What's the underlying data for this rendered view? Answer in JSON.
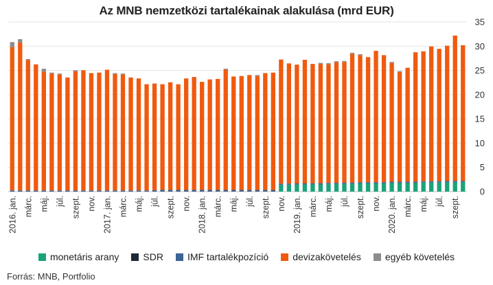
{
  "chart_data": {
    "type": "bar",
    "stacked": true,
    "title": "Az MNB nemzetközi tartalékainak alakulása (mrd EUR)",
    "source": "Forrás: MNB, Portfolio",
    "ylim": [
      0,
      35
    ],
    "yticks": [
      0,
      5,
      10,
      15,
      20,
      25,
      30,
      35
    ],
    "yaxis_position": "right",
    "grid": true,
    "legend_position": "bottom",
    "x_tick_labels": [
      {
        "index": 0,
        "label": "2016. jan."
      },
      {
        "index": 2,
        "label": "márc."
      },
      {
        "index": 4,
        "label": "máj."
      },
      {
        "index": 6,
        "label": "júl."
      },
      {
        "index": 8,
        "label": "szept."
      },
      {
        "index": 10,
        "label": "nov."
      },
      {
        "index": 12,
        "label": "2017. jan."
      },
      {
        "index": 14,
        "label": "márc."
      },
      {
        "index": 16,
        "label": "máj."
      },
      {
        "index": 18,
        "label": "júl."
      },
      {
        "index": 20,
        "label": "szept."
      },
      {
        "index": 22,
        "label": "nov."
      },
      {
        "index": 24,
        "label": "2018. jan."
      },
      {
        "index": 26,
        "label": "márc."
      },
      {
        "index": 28,
        "label": "máj."
      },
      {
        "index": 30,
        "label": "júl."
      },
      {
        "index": 32,
        "label": "szept."
      },
      {
        "index": 34,
        "label": "nov."
      },
      {
        "index": 36,
        "label": "2019. jan."
      },
      {
        "index": 38,
        "label": "márc."
      },
      {
        "index": 40,
        "label": "máj."
      },
      {
        "index": 42,
        "label": "júl."
      },
      {
        "index": 44,
        "label": "szept."
      },
      {
        "index": 46,
        "label": "nov."
      },
      {
        "index": 48,
        "label": "2020. jan."
      },
      {
        "index": 50,
        "label": "márc."
      },
      {
        "index": 52,
        "label": "máj."
      },
      {
        "index": 54,
        "label": "júl."
      },
      {
        "index": 56,
        "label": "szept."
      }
    ],
    "series": [
      {
        "name": "monetáris arany",
        "color": "#1aa37a",
        "values": [
          0,
          0,
          0,
          0,
          0,
          0,
          0,
          0,
          0,
          0,
          0,
          0,
          0,
          0,
          0,
          0,
          0,
          0,
          0,
          0,
          0,
          0,
          0,
          0,
          0,
          0,
          0,
          0,
          0,
          0,
          0,
          0,
          0,
          0,
          1.4,
          1.4,
          1.45,
          1.45,
          1.5,
          1.5,
          1.55,
          1.55,
          1.6,
          1.6,
          1.7,
          1.7,
          1.7,
          1.7,
          1.8,
          1.8,
          1.8,
          1.8,
          1.9,
          1.9,
          1.9,
          1.95,
          1.95,
          1.95
        ]
      },
      {
        "name": "SDR",
        "color": "#1c2a36",
        "values": [
          0.05,
          0.05,
          0.05,
          0.05,
          0.05,
          0.05,
          0.05,
          0.05,
          0.05,
          0.05,
          0.05,
          0.05,
          0.05,
          0.05,
          0.05,
          0.05,
          0.05,
          0.05,
          0.05,
          0.05,
          0.05,
          0.05,
          0.05,
          0.05,
          0.05,
          0.05,
          0.05,
          0.05,
          0.05,
          0.05,
          0.05,
          0.05,
          0.05,
          0.05,
          0.05,
          0.05,
          0.05,
          0.05,
          0.05,
          0.05,
          0.05,
          0.05,
          0.05,
          0.05,
          0.05,
          0.05,
          0.05,
          0.05,
          0.05,
          0.05,
          0.05,
          0.05,
          0.05,
          0.05,
          0.05,
          0.05,
          0.05,
          0.05
        ]
      },
      {
        "name": "IMF tartalékpozíció",
        "color": "#3a6596",
        "values": [
          0.2,
          0.2,
          0.2,
          0.2,
          0.2,
          0.2,
          0.2,
          0.2,
          0.2,
          0.2,
          0.2,
          0.2,
          0.2,
          0.2,
          0.2,
          0.2,
          0.2,
          0.2,
          0.25,
          0.3,
          0.3,
          0.3,
          0.3,
          0.3,
          0.3,
          0.3,
          0.3,
          0.3,
          0.3,
          0.3,
          0.3,
          0.3,
          0.3,
          0.3,
          0.2,
          0.2,
          0.2,
          0.2,
          0.2,
          0.2,
          0.2,
          0.2,
          0.2,
          0.2,
          0.2,
          0.2,
          0.2,
          0.2,
          0.2,
          0.2,
          0.2,
          0.2,
          0.2,
          0.2,
          0.2,
          0.2,
          0.2,
          0.2
        ]
      },
      {
        "name": "devizakövetelés",
        "color": "#f05a0f",
        "values": [
          29.6,
          30.5,
          26.9,
          26.0,
          24.5,
          24.1,
          23.9,
          23.3,
          24.6,
          24.8,
          24.2,
          24.3,
          24.9,
          24.0,
          23.9,
          23.3,
          23.1,
          21.9,
          22.0,
          21.8,
          22.2,
          21.8,
          23.0,
          23.3,
          22.3,
          22.8,
          22.9,
          24.8,
          23.4,
          23.5,
          23.7,
          23.5,
          24.1,
          24.2,
          25.6,
          24.8,
          24.5,
          25.5,
          24.6,
          24.6,
          24.5,
          24.9,
          24.9,
          26.6,
          26.2,
          25.8,
          27.1,
          26.2,
          24.5,
          22.6,
          23.5,
          26.7,
          26.8,
          27.8,
          27.3,
          27.9,
          30.0,
          28.0
        ]
      },
      {
        "name": "egyéb követelés",
        "color": "#8c8c8c",
        "values": [
          1.0,
          0.7,
          0.2,
          0.0,
          0.6,
          0.2,
          0.2,
          0.0,
          0.2,
          0.0,
          0.0,
          0.0,
          0.0,
          0.2,
          0.2,
          0.0,
          0.0,
          0.0,
          0.0,
          0.0,
          0.0,
          0.0,
          0.0,
          0.0,
          0.0,
          0.0,
          0.0,
          0.2,
          0.0,
          0.0,
          0.0,
          0.2,
          0.0,
          0.0,
          0.0,
          0.0,
          0.0,
          0.0,
          0.0,
          0.2,
          0.2,
          0.2,
          0.2,
          0.2,
          0.2,
          0.0,
          0.0,
          0.0,
          0.2,
          0.2,
          0.0,
          0.0,
          0.0,
          0.0,
          0.0,
          0.0,
          0.0,
          0.0
        ]
      }
    ]
  },
  "legend": {
    "items": [
      {
        "label": "monetáris arany",
        "color": "#1aa37a"
      },
      {
        "label": "SDR",
        "color": "#1c2a36"
      },
      {
        "label": "IMF tartalékpozíció",
        "color": "#3a6596"
      },
      {
        "label": "devizakövetelés",
        "color": "#f05a0f"
      },
      {
        "label": "egyéb követelés",
        "color": "#8c8c8c"
      }
    ]
  }
}
